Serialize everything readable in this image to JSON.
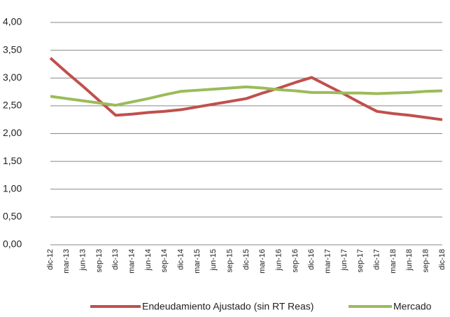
{
  "chart_data": {
    "type": "line",
    "categories": [
      "dic-12",
      "mar-13",
      "jun-13",
      "sep-13",
      "dic-13",
      "mar-14",
      "jun-14",
      "sep-14",
      "dic-14",
      "mar-15",
      "jun-15",
      "sep-15",
      "dic-15",
      "mar-16",
      "jun-16",
      "sep-16",
      "dic-16",
      "mar-17",
      "jun-17",
      "sep-17",
      "dic-17",
      "mar-18",
      "jun-18",
      "sep-18",
      "dic-18"
    ],
    "series": [
      {
        "name": "Endeudamiento Ajustado (sin RT Reas)",
        "color": "#c0504d",
        "values": [
          3.36,
          3.1,
          2.85,
          2.59,
          2.33,
          2.35,
          2.38,
          2.4,
          2.43,
          2.48,
          2.53,
          2.58,
          2.63,
          2.73,
          2.82,
          2.92,
          3.01,
          2.86,
          2.71,
          2.55,
          2.4,
          2.36,
          2.33,
          2.29,
          2.25
        ]
      },
      {
        "name": "Mercado",
        "color": "#9bbb59",
        "values": [
          2.67,
          2.63,
          2.59,
          2.55,
          2.51,
          2.57,
          2.63,
          2.7,
          2.76,
          2.78,
          2.8,
          2.82,
          2.84,
          2.82,
          2.79,
          2.77,
          2.74,
          2.74,
          2.73,
          2.73,
          2.72,
          2.73,
          2.74,
          2.76,
          2.77
        ]
      }
    ],
    "ylim": [
      0,
      4
    ],
    "yticks": [
      {
        "value": 0,
        "label": "0,00"
      },
      {
        "value": 0.5,
        "label": "0,50"
      },
      {
        "value": 1,
        "label": "1,00"
      },
      {
        "value": 1.5,
        "label": "1,50"
      },
      {
        "value": 2,
        "label": "2,00"
      },
      {
        "value": 2.5,
        "label": "2,50"
      },
      {
        "value": 3,
        "label": "3,00"
      },
      {
        "value": 3.5,
        "label": "3,50"
      },
      {
        "value": 4,
        "label": "4,00"
      }
    ],
    "grid": true
  }
}
